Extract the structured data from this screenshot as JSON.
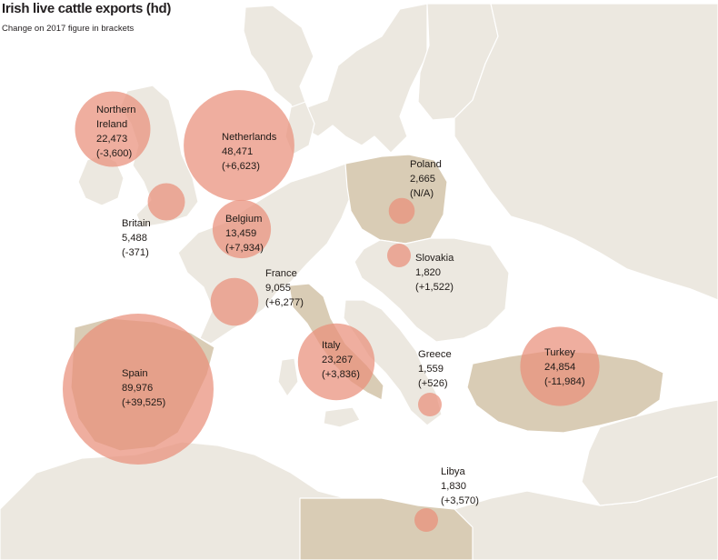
{
  "title": "Irish live cattle exports (hd)",
  "subtitle": "Change on 2017 figure in brackets",
  "colors": {
    "sea": "#ffffff",
    "land": "#ece8e0",
    "highlight_land": "#d9ccb5",
    "border": "#ffffff",
    "bubble_fill": "#e98f7a",
    "bubble_opacity": 0.72
  },
  "countries": [
    {
      "id": "northern-ireland",
      "name": [
        "Northern",
        "Ireland"
      ],
      "value": "22,473",
      "change": "(-3,600)",
      "exports": 22473
    },
    {
      "id": "netherlands",
      "name": [
        "Netherlands"
      ],
      "value": "48,471",
      "change": "(+6,623)",
      "exports": 48471
    },
    {
      "id": "britain",
      "name": [
        "Britain"
      ],
      "value": "5,488",
      "change": "(-371)",
      "exports": 5488
    },
    {
      "id": "belgium",
      "name": [
        "Belgium"
      ],
      "value": "13,459",
      "change": "(+7,934)",
      "exports": 13459
    },
    {
      "id": "poland",
      "name": [
        "Poland"
      ],
      "value": "2,665",
      "change": "(N/A)",
      "exports": 2665
    },
    {
      "id": "slovakia",
      "name": [
        "Slovakia"
      ],
      "value": "1,820",
      "change": "(+1,522)",
      "exports": 1820
    },
    {
      "id": "france",
      "name": [
        "France"
      ],
      "value": "9,055",
      "change": "(+6,277)",
      "exports": 9055
    },
    {
      "id": "spain",
      "name": [
        "Spain"
      ],
      "value": "89,976",
      "change": "(+39,525)",
      "exports": 89976
    },
    {
      "id": "italy",
      "name": [
        "Italy"
      ],
      "value": "23,267",
      "change": "(+3,836)",
      "exports": 23267
    },
    {
      "id": "greece",
      "name": [
        "Greece"
      ],
      "value": "1,559",
      "change": "(+526)",
      "exports": 1559
    },
    {
      "id": "turkey",
      "name": [
        "Turkey"
      ],
      "value": "24,854",
      "change": "(-11,984)",
      "exports": 24854
    },
    {
      "id": "libya",
      "name": [
        "Libya"
      ],
      "value": "1,830",
      "change": "(+3,570)",
      "exports": 1830
    }
  ]
}
